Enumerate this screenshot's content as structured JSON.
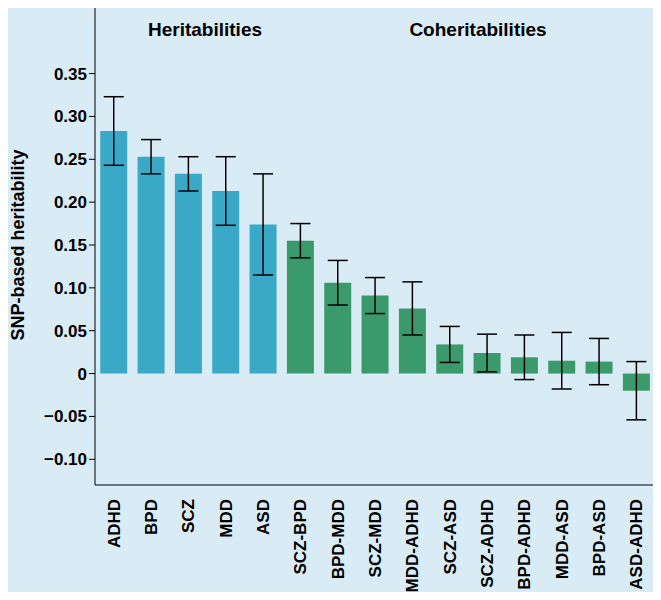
{
  "chart_data": {
    "type": "bar",
    "y_label": "SNP-based heritability",
    "annotations": [
      "Heritabilities",
      "Coheritabilities"
    ],
    "categories": [
      "ADHD",
      "BPD",
      "SCZ",
      "MDD",
      "ASD",
      "SCZ-BPD",
      "BPD-MDD",
      "SCZ-MDD",
      "MDD-ADHD",
      "SCZ-ASD",
      "SCZ-ADHD",
      "BPD-ADHD",
      "MDD-ASD",
      "BPD-ASD",
      "ASD-ADHD"
    ],
    "values": [
      0.283,
      0.253,
      0.233,
      0.213,
      0.174,
      0.155,
      0.106,
      0.091,
      0.076,
      0.034,
      0.024,
      0.019,
      0.015,
      0.014,
      -0.02
    ],
    "errors": [
      0.04,
      0.02,
      0.02,
      0.04,
      0.059,
      0.02,
      0.026,
      0.021,
      0.031,
      0.021,
      0.022,
      0.026,
      0.033,
      0.027,
      0.034
    ],
    "colors": [
      "#3aa9c8",
      "#3aa9c8",
      "#3aa9c8",
      "#3aa9c8",
      "#3aa9c8",
      "#3a9a6c",
      "#3a9a6c",
      "#3a9a6c",
      "#3a9a6c",
      "#3a9a6c",
      "#3a9a6c",
      "#3a9a6c",
      "#3a9a6c",
      "#3a9a6c",
      "#3a9a6c"
    ],
    "ylim": [
      -0.13,
      0.43
    ],
    "yticks": [
      {
        "value": -0.1,
        "label": "−0.10"
      },
      {
        "value": -0.05,
        "label": "−0.05"
      },
      0,
      0.05,
      {
        "value": 0.1,
        "label": "0.10"
      },
      0.15,
      {
        "value": 0.2,
        "label": "0.20"
      },
      0.25,
      {
        "value": 0.3,
        "label": "0.30"
      },
      0.35
    ],
    "grid": false
  }
}
